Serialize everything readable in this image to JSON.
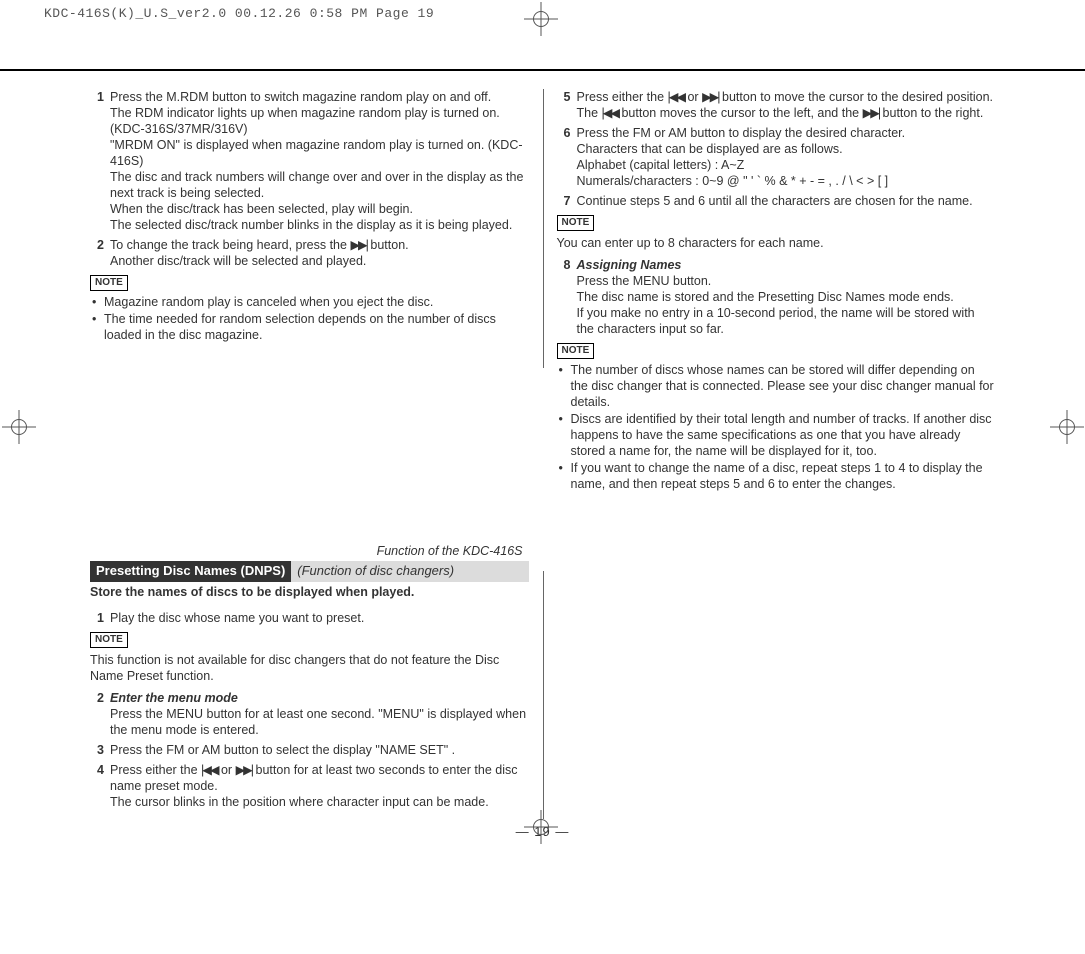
{
  "header": "KDC-416S(K)_U.S_ver2.0  00.12.26 0:58 PM  Page 19",
  "note_label": "NOTE",
  "page_number": "— 19 —",
  "function_of": "Function of the KDC-416S",
  "section_title": "Presetting Disc Names (DNPS)",
  "section_sub": "(Function of disc changers)",
  "section_desc": "Store the names of discs to be displayed when played.",
  "icons": {
    "fwd": "▶▶|",
    "rev": "|◀◀"
  },
  "colsep1_h": 279,
  "colsep2_h": 248,
  "left": {
    "s1": {
      "l1": "Press the M.RDM button to switch magazine random play on and off.",
      "l2": "The RDM indicator lights up when magazine random play is turned on. (KDC-316S/37MR/316V)",
      "l3": "\"MRDM ON\" is displayed when magazine random play is turned on. (KDC-416S)",
      "l4": "The disc and track numbers will change over and over in the display as the next track is being selected.",
      "l5": "When the disc/track has been selected, play will begin.",
      "l6": "The selected disc/track number blinks in the display as it is being played."
    },
    "s2": {
      "l1a": "To change the track being heard, press the ",
      "l1b": " button.",
      "l2": "Another disc/track will be selected and played."
    },
    "n1": [
      "Magazine random play is canceled when you eject the disc.",
      "The time needed for random selection depends on the number of discs loaded in the disc magazine."
    ],
    "b1": "Play the disc whose name you want to preset.",
    "bnote": "This function is not available for disc changers that do not feature the Disc Name Preset function.",
    "b2": {
      "title": "Enter the menu mode",
      "l1": "Press the MENU button for at least one second. \"MENU\" is displayed when the menu mode is entered."
    },
    "b3": "Press the FM or AM button to select the display \"NAME SET\" .",
    "b4": {
      "l1a": "Press either the ",
      "l1b": " or ",
      "l1c": " button for at least two seconds to enter the disc name preset mode.",
      "l2": "The cursor blinks in the position where character input can be made."
    }
  },
  "right": {
    "s5": {
      "l1a": "Press either the ",
      "l1b": " or ",
      "l1c": " button to move the cursor to the desired position.",
      "l2a": "The ",
      "l2b": " button moves the cursor to the left, and the ",
      "l2c": " button to the right."
    },
    "s6": {
      "l1": "Press the FM or AM button to display the desired character.",
      "l2": "Characters that can be displayed are as follows.",
      "l3": "Alphabet (capital letters) : A~Z",
      "l4": "Numerals/characters : 0~9 @ \" ' ` % & * + - = , . / \\ < > [ ]"
    },
    "s7": "Continue steps 5 and 6 until all the characters are chosen for the name.",
    "n2": "You can enter up to 8 characters for each name.",
    "s8": {
      "title": "Assigning Names",
      "l1": "Press the MENU button.",
      "l2": "The disc name is stored and the Presetting Disc Names mode ends.",
      "l3": "If you make no entry in a 10-second period, the name will be stored with the characters input so far."
    },
    "n3": [
      "The number of discs whose names can be stored will differ depending on the disc changer that is connected. Please see your disc changer manual for details.",
      "Discs are identified by their total length and number of tracks. If another disc happens to have the same specifications as one that you have already stored a name for, the name will be displayed for it, too.",
      "If you want to change the name of a disc, repeat steps 1 to 4 to display the name, and then repeat steps 5 and 6 to enter the changes."
    ]
  }
}
